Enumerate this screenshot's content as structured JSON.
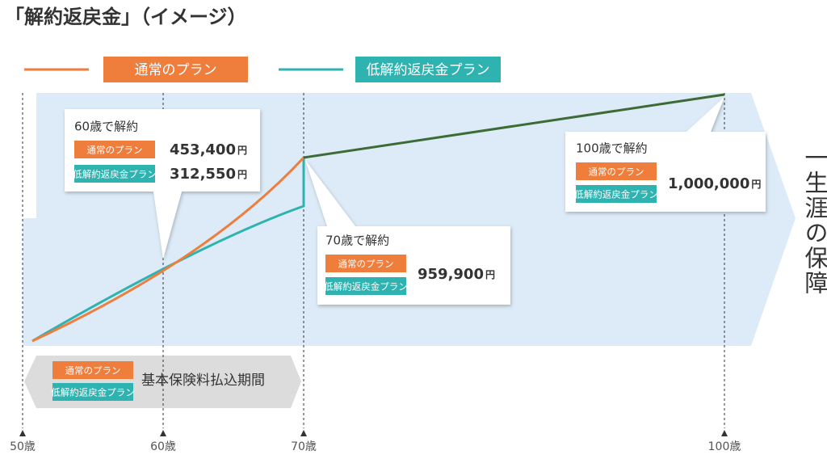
{
  "title": "「解約返戻金」（イメージ）",
  "legend": [
    "通常のプラン",
    "低解約返戻金プラン"
  ],
  "callouts": [
    {
      "heading": "60歳で解約",
      "rows": [
        {
          "plan": "通常のプラン",
          "amount": "453,400",
          "unit": "円"
        },
        {
          "plan": "低解約返戻金プラン",
          "amount": "312,550",
          "unit": "円"
        }
      ]
    },
    {
      "heading": "70歳で解約",
      "plans": [
        "通常のプラン",
        "低解約返戻金プラン"
      ],
      "amount": "959,900",
      "unit": "円"
    },
    {
      "heading": "100歳で解約",
      "plans": [
        "通常のプラン",
        "低解約返戻金プラン"
      ],
      "amount": "1,000,000",
      "unit": "円"
    }
  ],
  "payment_period": {
    "plans": [
      "通常のプラン",
      "低解約返戻金プラン"
    ],
    "label": "基本保険料払込期間"
  },
  "lifetime": "一生涯の保障",
  "ages": [
    "50歳",
    "60歳",
    "70歳",
    "100歳"
  ]
}
